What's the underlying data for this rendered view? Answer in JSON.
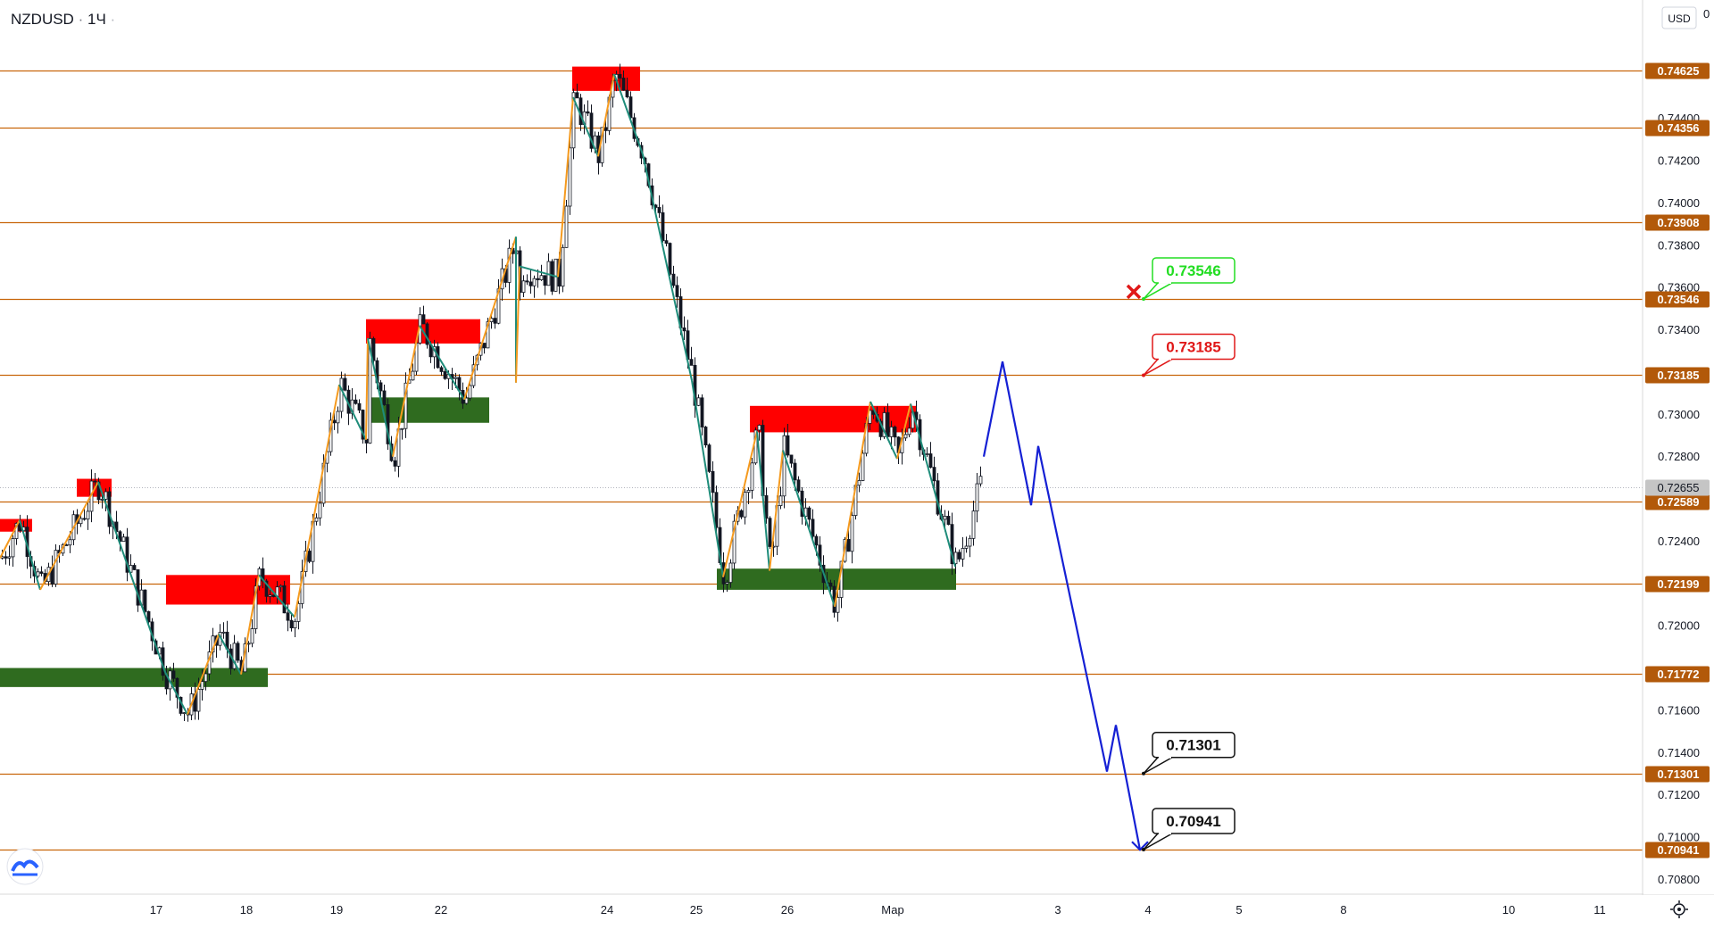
{
  "header": {
    "symbol": "NZDUSD",
    "separator": "·",
    "timeframe": "1Ч",
    "dot": "·"
  },
  "price_scale": {
    "currency": "USD",
    "top_label": "0"
  },
  "colors": {
    "level_line": "#c8650a",
    "level_label_bg": "#b2590a",
    "candle": "#131722",
    "zigzag_up": "#f59a1e",
    "zigzag_down": "#1e8c7a",
    "supply_zone": "#ff0000",
    "demand_zone": "#2f6b1f",
    "forecast": "#1520d4",
    "callout_green": "#22dd22",
    "callout_red": "#e01818",
    "callout_black": "#111111",
    "current_price_bg": "#c5c5c5"
  },
  "chart_data": {
    "type": "candlestick",
    "symbol": "NZDUSD",
    "ylim": [
      0.7073,
      0.7496
    ],
    "y_ticks": [
      "0.74400",
      "0.74200",
      "0.74000",
      "0.73800",
      "0.73600",
      "0.73400",
      "0.73000",
      "0.72800",
      "0.72400",
      "0.72000",
      "0.71600",
      "0.71400",
      "0.71200",
      "0.71000",
      "0.70800"
    ],
    "x_ticks": [
      "17",
      "18",
      "19",
      "22",
      "24",
      "25",
      "26",
      "Мар",
      "3",
      "4",
      "5",
      "8",
      "10",
      "11"
    ],
    "levels": [
      "0.74625",
      "0.74356",
      "0.73908",
      "0.73546",
      "0.73185",
      "0.72589",
      "0.72199",
      "0.71772",
      "0.71301",
      "0.70941"
    ],
    "current_price": "0.72655",
    "zigzag": [
      [
        0,
        0.7232
      ],
      [
        22,
        0.725
      ],
      [
        45,
        0.7217
      ],
      [
        110,
        0.7268
      ],
      [
        185,
        0.7178
      ],
      [
        210,
        0.7158
      ],
      [
        245,
        0.7196
      ],
      [
        270,
        0.7177
      ],
      [
        290,
        0.7224
      ],
      [
        330,
        0.7204
      ],
      [
        380,
        0.7314
      ],
      [
        410,
        0.7288
      ],
      [
        412,
        0.7336
      ],
      [
        440,
        0.728
      ],
      [
        470,
        0.7342
      ],
      [
        520,
        0.7307
      ],
      [
        578,
        0.7384
      ],
      [
        578,
        0.7315
      ],
      [
        582,
        0.737
      ],
      [
        625,
        0.7365
      ],
      [
        642,
        0.745
      ],
      [
        670,
        0.7422
      ],
      [
        688,
        0.7461
      ],
      [
        720,
        0.7423
      ],
      [
        775,
        0.7316
      ],
      [
        810,
        0.7223
      ],
      [
        848,
        0.7292
      ],
      [
        862,
        0.7226
      ],
      [
        877,
        0.7283
      ],
      [
        935,
        0.7209
      ],
      [
        975,
        0.7306
      ],
      [
        1005,
        0.7279
      ],
      [
        1020,
        0.7305
      ],
      [
        1070,
        0.7228
      ]
    ],
    "zones": [
      {
        "kind": "supply",
        "x1": 0,
        "x2": 36,
        "y1": 0.72505,
        "y2": 0.72445
      },
      {
        "kind": "supply",
        "x1": 86,
        "x2": 125,
        "y1": 0.72695,
        "y2": 0.7261
      },
      {
        "kind": "demand",
        "x1": 0,
        "x2": 300,
        "y1": 0.718,
        "y2": 0.7171
      },
      {
        "kind": "supply",
        "x1": 186,
        "x2": 325,
        "y1": 0.7224,
        "y2": 0.721
      },
      {
        "kind": "supply",
        "x1": 410,
        "x2": 538,
        "y1": 0.7345,
        "y2": 0.73335
      },
      {
        "kind": "demand",
        "x1": 413,
        "x2": 548,
        "y1": 0.7308,
        "y2": 0.7296
      },
      {
        "kind": "supply",
        "x1": 641,
        "x2": 717,
        "y1": 0.74645,
        "y2": 0.7453
      },
      {
        "kind": "supply",
        "x1": 840,
        "x2": 1026,
        "y1": 0.7304,
        "y2": 0.72915
      },
      {
        "kind": "demand",
        "x1": 803,
        "x2": 1071,
        "y1": 0.7227,
        "y2": 0.7217
      }
    ],
    "forecast": [
      [
        1102,
        0.728
      ],
      [
        1123,
        0.7325
      ],
      [
        1155,
        0.7257
      ],
      [
        1163,
        0.7285
      ],
      [
        1240,
        0.7131
      ],
      [
        1250,
        0.7153
      ],
      [
        1277,
        0.7094
      ]
    ],
    "callouts": [
      {
        "label": "0.73546",
        "kind": "green",
        "tip_x": 1281,
        "tip_y": 0.73546
      },
      {
        "label": "0.73185",
        "kind": "red",
        "tip_x": 1281,
        "tip_y": 0.73185
      },
      {
        "label": "0.71301",
        "kind": "black",
        "tip_x": 1281,
        "tip_y": 0.71301
      },
      {
        "label": "0.70941",
        "kind": "black",
        "tip_x": 1281,
        "tip_y": 0.70941
      }
    ],
    "x_marker": {
      "x": 1270,
      "y": 0.7358
    }
  }
}
